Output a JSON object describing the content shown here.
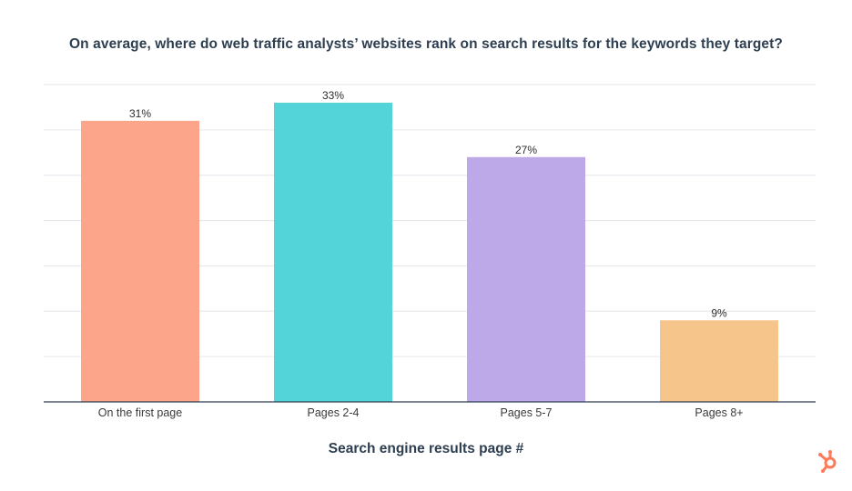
{
  "chart_data": {
    "type": "bar",
    "title": "On average, where do web traffic analysts’ websites rank on search results for the keywords they target?",
    "xlabel": "Search engine results page #",
    "ylabel": "",
    "categories": [
      "On the first page",
      "Pages 2-4",
      "Pages 5-7",
      "Pages 8+"
    ],
    "values": [
      31,
      33,
      27,
      9
    ],
    "value_labels": [
      "31%",
      "33%",
      "27%",
      "9%"
    ],
    "colors": [
      "#fca58a",
      "#52d4d9",
      "#bda9e8",
      "#f5c58c"
    ],
    "ylim": [
      0,
      35
    ],
    "grid": true,
    "legend": "none"
  },
  "brand": {
    "logo_icon": "hubspot-sprocket-icon",
    "accent_color": "#ff7a59"
  }
}
